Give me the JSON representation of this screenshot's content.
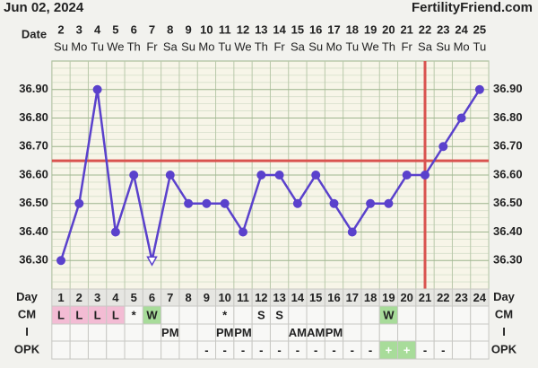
{
  "header": {
    "date": "Jun 02, 2024",
    "site": "FertilityFriend.com"
  },
  "chart_data": {
    "type": "line",
    "date_label": "Date",
    "x": [
      2,
      3,
      4,
      5,
      6,
      7,
      8,
      9,
      10,
      11,
      12,
      13,
      14,
      15,
      16,
      17,
      18,
      19,
      20,
      21,
      22,
      23,
      24,
      25
    ],
    "weekdays": [
      "Su",
      "Mo",
      "Tu",
      "We",
      "Th",
      "Fr",
      "Sa",
      "Su",
      "Mo",
      "Tu",
      "We",
      "Th",
      "Fr",
      "Sa",
      "Su",
      "Mo",
      "Tu",
      "We",
      "Th",
      "Fr",
      "Sa",
      "Su",
      "Mo",
      "Tu"
    ],
    "values": [
      36.3,
      36.5,
      36.9,
      36.4,
      36.6,
      36.3,
      36.6,
      36.5,
      36.5,
      36.5,
      36.4,
      36.6,
      36.6,
      36.5,
      36.6,
      36.5,
      36.4,
      36.5,
      36.5,
      36.6,
      36.6,
      36.7,
      36.8,
      36.9
    ],
    "color": "#5a41cc",
    "open_marker_index": 5,
    "coverline": 36.65,
    "coverline_color": "#d9534f",
    "ovulation_index": 20,
    "ylim": [
      36.2,
      37.0
    ],
    "yticks": [
      {
        "value": 36.3,
        "label": "36.30"
      },
      {
        "value": 36.4,
        "label": "36.40"
      },
      {
        "value": 36.5,
        "label": "36.50"
      },
      {
        "value": 36.6,
        "label": "36.60"
      },
      {
        "value": 36.7,
        "label": "36.70"
      },
      {
        "value": 36.8,
        "label": "36.80"
      },
      {
        "value": 36.9,
        "label": "36.90"
      }
    ],
    "grid": true
  },
  "table": {
    "rows": [
      {
        "label": "Day",
        "cells": [
          1,
          2,
          3,
          4,
          5,
          6,
          7,
          8,
          9,
          10,
          11,
          12,
          13,
          14,
          15,
          16,
          17,
          18,
          19,
          20,
          21,
          22,
          23,
          24
        ]
      },
      {
        "label": "CM",
        "cells": [
          "L",
          "L",
          "L",
          "L",
          "*",
          "W",
          null,
          null,
          null,
          "*",
          null,
          "S",
          "S",
          null,
          null,
          null,
          null,
          null,
          "W",
          null,
          null,
          null,
          null,
          null
        ],
        "fills": [
          "#f3bcd4",
          "#f3bcd4",
          "#f3bcd4",
          "#f3bcd4",
          null,
          "#a8dc9a",
          null,
          null,
          null,
          null,
          null,
          null,
          null,
          null,
          null,
          null,
          null,
          null,
          "#a8dc9a",
          null,
          null,
          null,
          null,
          null
        ]
      },
      {
        "label": "I",
        "cells": [
          null,
          null,
          null,
          null,
          null,
          null,
          "PM",
          null,
          null,
          "PM",
          "PM",
          null,
          null,
          "AM",
          "AM",
          "PM",
          null,
          null,
          null,
          null,
          null,
          null,
          null,
          null
        ]
      },
      {
        "label": "OPK",
        "cells": [
          null,
          null,
          null,
          null,
          null,
          null,
          null,
          null,
          "-",
          "-",
          "-",
          "-",
          "-",
          "-",
          "-",
          "-",
          "-",
          "-",
          "+",
          "+",
          "-",
          "-",
          null,
          null
        ],
        "fills": [
          null,
          null,
          null,
          null,
          null,
          null,
          null,
          null,
          null,
          null,
          null,
          null,
          null,
          null,
          null,
          null,
          null,
          null,
          "#a8dc9a",
          "#a8dc9a",
          null,
          null,
          null,
          null
        ]
      }
    ]
  }
}
